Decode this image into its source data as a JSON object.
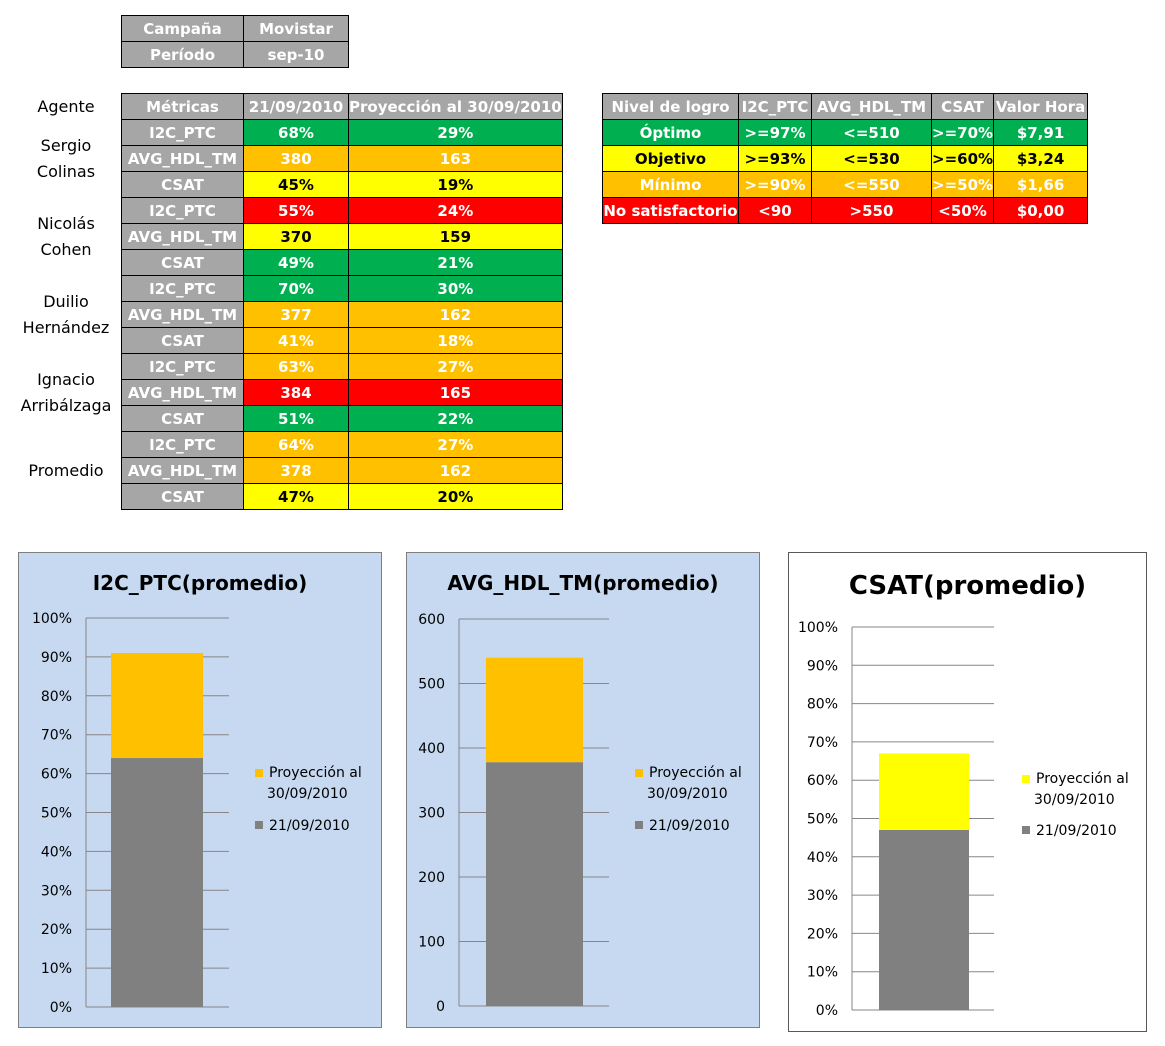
{
  "header": {
    "rows": [
      {
        "label": "Campaña",
        "value": "Movistar"
      },
      {
        "label": "Período",
        "value": "sep-10"
      }
    ]
  },
  "agent_col_label": "Agente",
  "metrics_table": {
    "headers": [
      "Métricas",
      "21/09/2010",
      "Proyección al 30/09/2010"
    ],
    "agents": [
      {
        "name": "Sergio Colinas",
        "rows": [
          {
            "metric": "I2C_PTC",
            "v1": "68%",
            "v2": "29%",
            "c1": "g",
            "c2": "g"
          },
          {
            "metric": "AVG_HDL_TM",
            "v1": "380",
            "v2": "163",
            "c1": "o",
            "c2": "o"
          },
          {
            "metric": "CSAT",
            "v1": "45%",
            "v2": "19%",
            "c1": "y",
            "c2": "y"
          }
        ]
      },
      {
        "name": "Nicolás Cohen",
        "rows": [
          {
            "metric": "I2C_PTC",
            "v1": "55%",
            "v2": "24%",
            "c1": "r",
            "c2": "r"
          },
          {
            "metric": "AVG_HDL_TM",
            "v1": "370",
            "v2": "159",
            "c1": "y",
            "c2": "y"
          },
          {
            "metric": "CSAT",
            "v1": "49%",
            "v2": "21%",
            "c1": "g",
            "c2": "g"
          }
        ]
      },
      {
        "name": "Duilio Hernández",
        "rows": [
          {
            "metric": "I2C_PTC",
            "v1": "70%",
            "v2": "30%",
            "c1": "g",
            "c2": "g"
          },
          {
            "metric": "AVG_HDL_TM",
            "v1": "377",
            "v2": "162",
            "c1": "o",
            "c2": "o"
          },
          {
            "metric": "CSAT",
            "v1": "41%",
            "v2": "18%",
            "c1": "o",
            "c2": "o"
          }
        ]
      },
      {
        "name": "Ignacio Arribálzaga",
        "rows": [
          {
            "metric": "I2C_PTC",
            "v1": "63%",
            "v2": "27%",
            "c1": "o",
            "c2": "o"
          },
          {
            "metric": "AVG_HDL_TM",
            "v1": "384",
            "v2": "165",
            "c1": "r",
            "c2": "r"
          },
          {
            "metric": "CSAT",
            "v1": "51%",
            "v2": "22%",
            "c1": "g",
            "c2": "g"
          }
        ]
      },
      {
        "name": "Promedio",
        "rows": [
          {
            "metric": "I2C_PTC",
            "v1": "64%",
            "v2": "27%",
            "c1": "o",
            "c2": "o"
          },
          {
            "metric": "AVG_HDL_TM",
            "v1": "378",
            "v2": "162",
            "c1": "o",
            "c2": "o"
          },
          {
            "metric": "CSAT",
            "v1": "47%",
            "v2": "20%",
            "c1": "y",
            "c2": "y"
          }
        ]
      }
    ]
  },
  "levels_table": {
    "headers": [
      "Nivel de logro",
      "I2C_PTC",
      "AVG_HDL_TM",
      "CSAT",
      "Valor Hora"
    ],
    "rows": [
      {
        "cells": [
          "Óptimo",
          ">=97%",
          "<=510",
          ">=70%",
          "$7,91"
        ],
        "c": "g"
      },
      {
        "cells": [
          "Objetivo",
          ">=93%",
          "<=530",
          ">=60%",
          "$3,24"
        ],
        "c": "y"
      },
      {
        "cells": [
          "Mínimo",
          ">=90%",
          "<=550",
          ">=50%",
          "$1,66"
        ],
        "c": "o"
      },
      {
        "cells": [
          "No satisfactorio",
          "<90",
          ">550",
          "<50%",
          "$0,00"
        ],
        "c": "r"
      }
    ]
  },
  "colors": {
    "gray": "#808080",
    "orange": "#ffc000",
    "yellow": "#ffff00",
    "green": "#00b050",
    "red": "#ff0000",
    "chart_bg": "#c6d9f1"
  },
  "chart_data": [
    {
      "type": "bar",
      "title": "I2C_PTC(promedio)",
      "categories": [
        ""
      ],
      "series": [
        {
          "name": "21/09/2010",
          "values": [
            0.64
          ],
          "color": "#808080"
        },
        {
          "name": "Proyección al 30/09/2010",
          "values": [
            0.27
          ],
          "color": "#ffc000"
        }
      ],
      "stacked": true,
      "ylim": [
        0,
        1
      ],
      "yticks": [
        "0%",
        "10%",
        "20%",
        "30%",
        "40%",
        "50%",
        "60%",
        "70%",
        "80%",
        "90%",
        "100%"
      ],
      "legend": "right"
    },
    {
      "type": "bar",
      "title": "AVG_HDL_TM(promedio)",
      "categories": [
        ""
      ],
      "series": [
        {
          "name": "21/09/2010",
          "values": [
            378
          ],
          "color": "#808080"
        },
        {
          "name": "Proyección al 30/09/2010",
          "values": [
            162
          ],
          "color": "#ffc000"
        }
      ],
      "stacked": true,
      "ylim": [
        0,
        600
      ],
      "yticks": [
        "0",
        "100",
        "200",
        "300",
        "400",
        "500",
        "600"
      ],
      "legend": "right"
    },
    {
      "type": "bar",
      "title": "CSAT(promedio)",
      "categories": [
        ""
      ],
      "series": [
        {
          "name": "21/09/2010",
          "values": [
            0.47
          ],
          "color": "#808080"
        },
        {
          "name": "Proyección al 30/09/2010",
          "values": [
            0.2
          ],
          "color": "#ffff00"
        }
      ],
      "stacked": true,
      "ylim": [
        0,
        1
      ],
      "yticks": [
        "0%",
        "10%",
        "20%",
        "30%",
        "40%",
        "50%",
        "60%",
        "70%",
        "80%",
        "90%",
        "100%"
      ],
      "legend": "right"
    }
  ]
}
